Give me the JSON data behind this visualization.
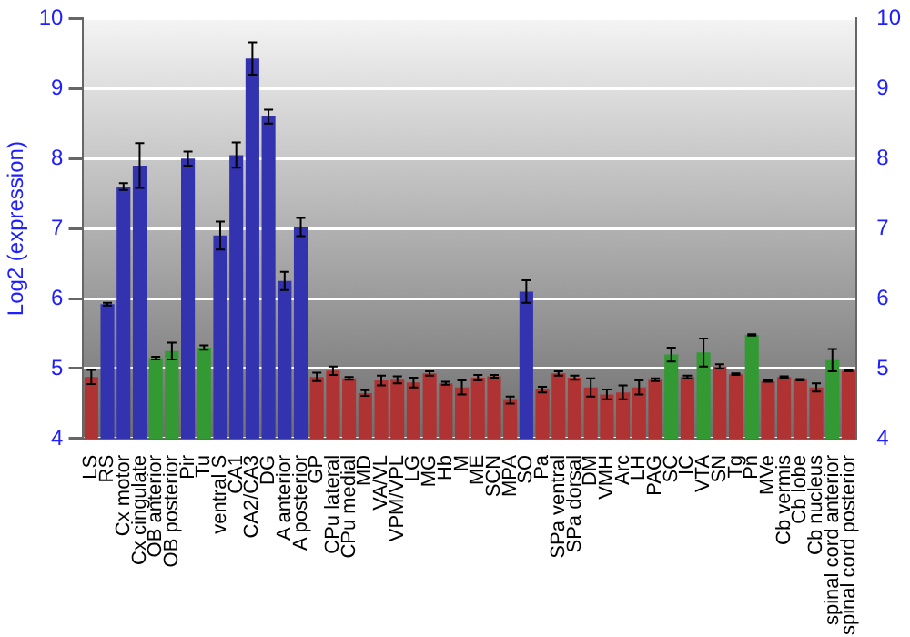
{
  "chart_data": {
    "type": "bar",
    "ylabel": "Log2 (expression)",
    "categories": [
      "LS",
      "RS",
      "Cx motor",
      "Cx cingulate",
      "OB anterior",
      "OB posterior",
      "Pir",
      "Tu",
      "ventral S",
      "CA1",
      "CA2/CA3",
      "DG",
      "A anterior",
      "A posterior",
      "GP",
      "CPu lateral",
      "CPu medial",
      "MD",
      "VA/VL",
      "VPM/VPL",
      "LG",
      "MG",
      "Hb",
      "M",
      "ME",
      "SCN",
      "MPA",
      "SO",
      "Pa",
      "SPa ventral",
      "SPa dorsal",
      "DM",
      "VMH",
      "Arc",
      "LH",
      "PAG",
      "SC",
      "IC",
      "VTA",
      "SN",
      "Tg",
      "Pn",
      "MVe",
      "Cb vermis",
      "Cb lobe",
      "Cb nucleus",
      "spinal cord anterior",
      "spinal cord posterior"
    ],
    "values": [
      4.88,
      5.92,
      7.6,
      7.9,
      5.15,
      5.25,
      8.0,
      5.3,
      6.9,
      8.05,
      9.43,
      8.6,
      6.25,
      7.02,
      4.88,
      4.97,
      4.86,
      4.65,
      4.83,
      4.84,
      4.8,
      4.93,
      4.79,
      4.73,
      4.87,
      4.89,
      4.55,
      6.1,
      4.7,
      4.93,
      4.87,
      4.73,
      4.63,
      4.66,
      4.73,
      4.84,
      5.2,
      4.88,
      5.23,
      5.03,
      4.92,
      5.48,
      4.82,
      4.88,
      4.84,
      4.73,
      5.12,
      4.97
    ],
    "errors": [
      0.1,
      0.02,
      0.05,
      0.32,
      0.02,
      0.12,
      0.1,
      0.03,
      0.2,
      0.18,
      0.23,
      0.1,
      0.13,
      0.13,
      0.06,
      0.06,
      0.02,
      0.04,
      0.07,
      0.05,
      0.07,
      0.03,
      0.02,
      0.1,
      0.04,
      0.02,
      0.05,
      0.16,
      0.04,
      0.03,
      0.03,
      0.13,
      0.07,
      0.1,
      0.1,
      0.02,
      0.1,
      0.02,
      0.2,
      0.03,
      0.01,
      0.01,
      0.01,
      0.01,
      0.01,
      0.06,
      0.16,
      0.01
    ],
    "colors": [
      "#b03333",
      "#3333b0",
      "#3333b0",
      "#3333b0",
      "#339933",
      "#339933",
      "#3333b0",
      "#339933",
      "#3333b0",
      "#3333b0",
      "#3333b0",
      "#3333b0",
      "#3333b0",
      "#3333b0",
      "#b03333",
      "#b03333",
      "#b03333",
      "#b03333",
      "#b03333",
      "#b03333",
      "#b03333",
      "#b03333",
      "#b03333",
      "#b03333",
      "#b03333",
      "#b03333",
      "#b03333",
      "#3333b0",
      "#b03333",
      "#b03333",
      "#b03333",
      "#b03333",
      "#b03333",
      "#b03333",
      "#b03333",
      "#b03333",
      "#339933",
      "#b03333",
      "#339933",
      "#b03333",
      "#b03333",
      "#339933",
      "#b03333",
      "#b03333",
      "#b03333",
      "#b03333",
      "#339933",
      "#b03333"
    ],
    "ylim": [
      4,
      10
    ],
    "yticks": [
      4,
      5,
      6,
      7,
      8,
      9,
      10
    ],
    "y2lim": [
      4,
      10
    ],
    "y2ticks": [
      4,
      5,
      6,
      7,
      8,
      9,
      10
    ],
    "grid": "y",
    "legend": false
  }
}
